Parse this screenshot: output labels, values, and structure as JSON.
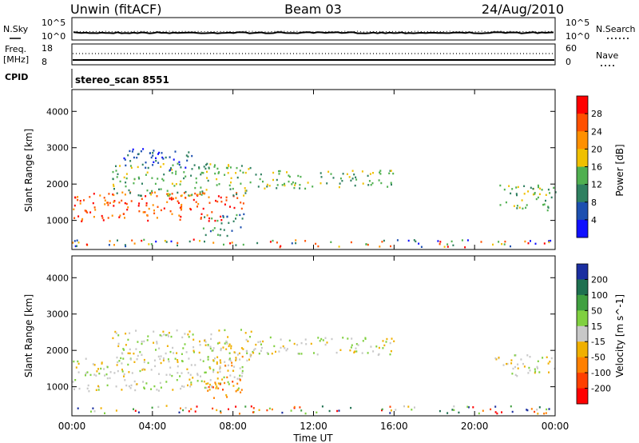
{
  "header": {
    "station": "Unwin (fitACF)",
    "beam": "Beam 03",
    "date": "24/Aug/2010"
  },
  "strips": {
    "nsky_label": "N.Sky",
    "nsky_ticks": [
      "10^5",
      "10^0"
    ],
    "nsearch_label": "N.Search",
    "nsearch_ticks": [
      "10^5",
      "10^0"
    ],
    "freq_label": "Freq.",
    "freq_unit": "[MHz]",
    "freq_ticks": [
      "18",
      "8"
    ],
    "nave_label": "Nave",
    "nave_ticks": [
      "60",
      "0"
    ],
    "cpid_label": "CPID",
    "cpid_value": "stereo_scan 8551"
  },
  "chart_data": [
    {
      "type": "heatmap",
      "name": "power",
      "ylabel": "Slant Range [km]",
      "xlabel": "Time UT",
      "x_ticks": [
        "00:00",
        "04:00",
        "08:00",
        "12:00",
        "16:00",
        "20:00",
        "00:00"
      ],
      "xlim_hours": [
        0,
        24
      ],
      "y_ticks": [
        "1000",
        "2000",
        "3000",
        "4000"
      ],
      "ylim": [
        200,
        4600
      ],
      "colorbar": {
        "label": "Power [dB]",
        "ticks": [
          "4",
          "8",
          "12",
          "16",
          "20",
          "24",
          "28"
        ],
        "colors": [
          "#1010ff",
          "#1d50b0",
          "#2f8060",
          "#50b050",
          "#f0c000",
          "#ff9000",
          "#ff5000",
          "#ff0000"
        ]
      },
      "regions": [
        {
          "t0": 0.0,
          "t1": 8.5,
          "r0": 1000,
          "r1": 1800,
          "level": 6
        },
        {
          "t0": 2.0,
          "t1": 9.0,
          "r0": 1700,
          "r1": 2600,
          "level": 3
        },
        {
          "t0": 2.5,
          "t1": 6.0,
          "r0": 2400,
          "r1": 3000,
          "level": 1
        },
        {
          "t0": 6.5,
          "t1": 8.5,
          "r0": 600,
          "r1": 1200,
          "level": 2
        },
        {
          "t0": 9.0,
          "t1": 16.0,
          "r0": 1900,
          "r1": 2400,
          "level": 3
        },
        {
          "t0": 21.0,
          "t1": 24.0,
          "r0": 1300,
          "r1": 2000,
          "level": 3
        }
      ]
    },
    {
      "type": "heatmap",
      "name": "velocity",
      "ylabel": "Slant Range [km]",
      "xlabel": "Time UT",
      "x_ticks": [
        "00:00",
        "04:00",
        "08:00",
        "12:00",
        "16:00",
        "20:00",
        "00:00"
      ],
      "xlim_hours": [
        0,
        24
      ],
      "y_ticks": [
        "1000",
        "2000",
        "3000",
        "4000"
      ],
      "ylim": [
        200,
        4600
      ],
      "colorbar": {
        "label": "Velocity [m s^-1]",
        "ticks": [
          "200",
          "100",
          "50",
          "15",
          "-15",
          "-50",
          "-100",
          "-200"
        ],
        "colors": [
          "#1a2ea0",
          "#1e7050",
          "#40a040",
          "#80d040",
          "#c8c8c8",
          "#f0b000",
          "#ff8000",
          "#ff4000",
          "#ff0000"
        ]
      },
      "regions": [
        {
          "t0": 0.0,
          "t1": 8.5,
          "r0": 900,
          "r1": 1800,
          "level": 4
        },
        {
          "t0": 2.0,
          "t1": 9.0,
          "r0": 1700,
          "r1": 2600,
          "level": 4
        },
        {
          "t0": 7.0,
          "t1": 8.5,
          "r0": 1600,
          "r1": 2100,
          "level": 5
        },
        {
          "t0": 6.5,
          "t1": 8.5,
          "r0": 700,
          "r1": 1300,
          "level": 6
        },
        {
          "t0": 9.0,
          "t1": 16.0,
          "r0": 1900,
          "r1": 2400,
          "level": 4
        },
        {
          "t0": 21.0,
          "t1": 24.0,
          "r0": 1300,
          "r1": 1900,
          "level": 4
        }
      ]
    }
  ]
}
